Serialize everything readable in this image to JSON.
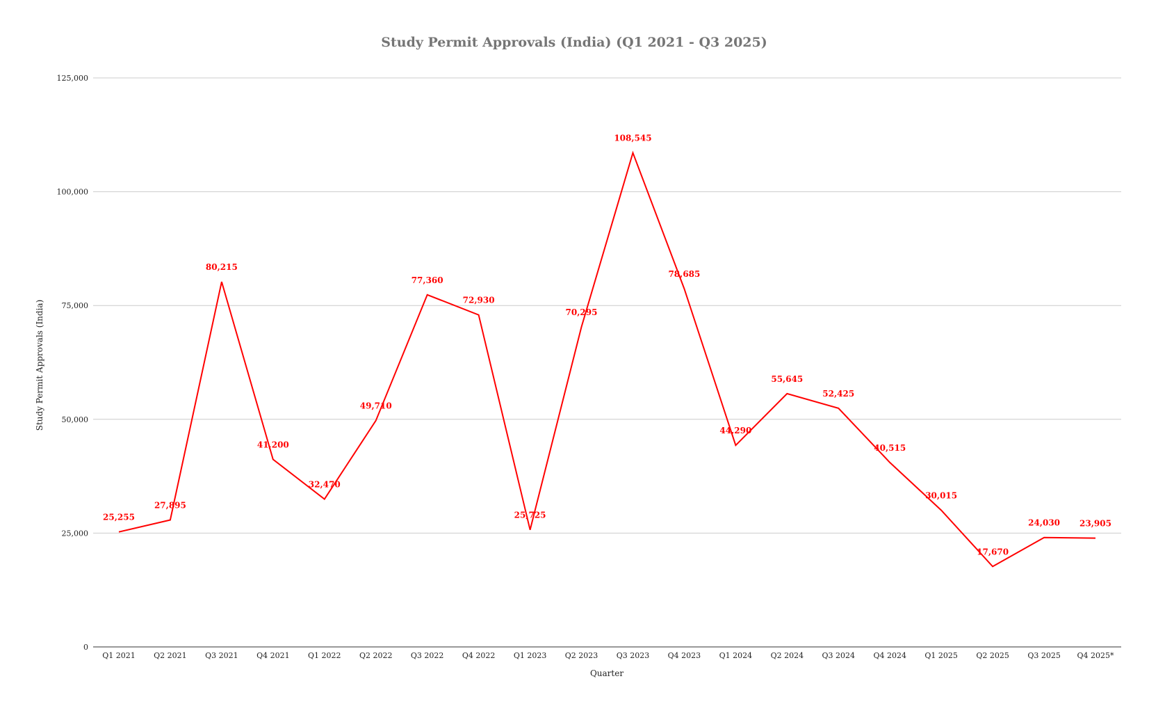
{
  "chart_data": {
    "type": "line",
    "title": "Study Permit Approvals (India) (Q1 2021 - Q3 2025)",
    "xlabel": "Quarter",
    "ylabel": "Study Permit Approvals (India)",
    "ylim": [
      0,
      125000
    ],
    "yticks": [
      0,
      25000,
      50000,
      75000,
      100000,
      125000
    ],
    "ytick_labels": [
      "0",
      "25,000",
      "50,000",
      "75,000",
      "100,000",
      "125,000"
    ],
    "grid": true,
    "legend": "none",
    "line_color": "#ff0000",
    "label_color": "#ff0000",
    "categories": [
      "Q1 2021",
      "Q2 2021",
      "Q3 2021",
      "Q4 2021",
      "Q1 2022",
      "Q2 2022",
      "Q3 2022",
      "Q4 2022",
      "Q1 2023",
      "Q2 2023",
      "Q3 2023",
      "Q4 2023",
      "Q1 2024",
      "Q2 2024",
      "Q3 2024",
      "Q4 2024",
      "Q1 2025",
      "Q2 2025",
      "Q3 2025",
      "Q4 2025*"
    ],
    "values": [
      25255,
      27895,
      80215,
      41200,
      32470,
      49710,
      77360,
      72930,
      25725,
      70295,
      108545,
      78685,
      44290,
      55645,
      52425,
      40515,
      30015,
      17670,
      24030,
      23905
    ],
    "value_labels": [
      "25,255",
      "27,895",
      "80,215",
      "41,200",
      "32,470",
      "49,710",
      "77,360",
      "72,930",
      "25,725",
      "70,295",
      "108,545",
      "78,685",
      "44,290",
      "55,645",
      "52,425",
      "40,515",
      "30,015",
      "17,670",
      "24,030",
      "23,905"
    ]
  }
}
